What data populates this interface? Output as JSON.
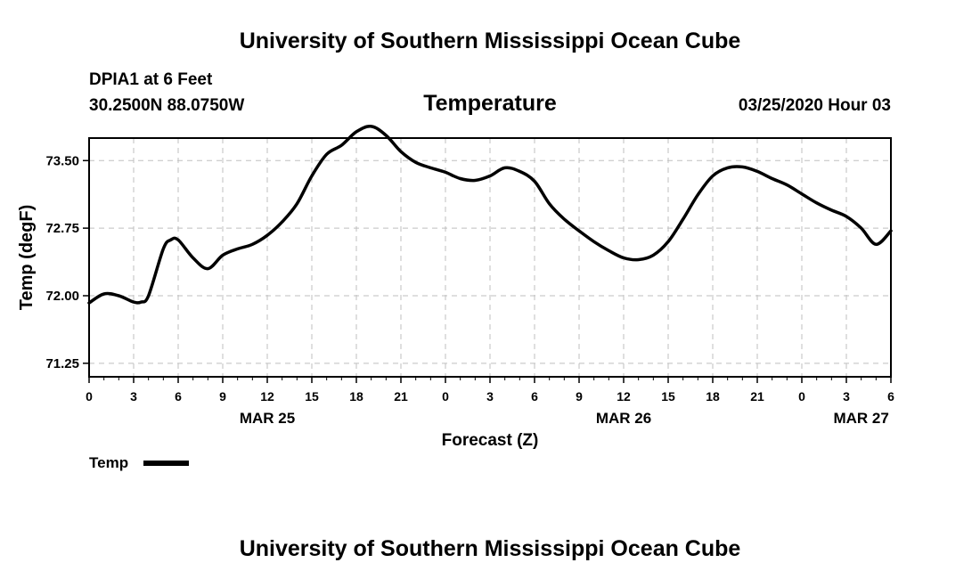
{
  "header": {
    "title": "University of Southern Mississippi Ocean Cube",
    "station": "DPIA1 at 6 Feet",
    "coords": "30.2500N 88.0750W",
    "variable": "Temperature",
    "timestamp": "03/25/2020 Hour 03"
  },
  "footer": {
    "title": "University of Southern Mississippi Ocean Cube"
  },
  "legend": {
    "label": "Temp"
  },
  "colors": {
    "line": "#000000",
    "grid": "#bfbfbf"
  },
  "chart_data": {
    "type": "line",
    "title": "Temperature",
    "xlabel": "Forecast (Z)",
    "ylabel": "Temp (degF)",
    "xlim": [
      0,
      54
    ],
    "ylim": [
      71.1,
      73.75
    ],
    "yticks": [
      "71.25",
      "72.00",
      "72.75",
      "73.50"
    ],
    "ytick_values": [
      71.25,
      72.0,
      72.75,
      73.5
    ],
    "xticks": [
      "0",
      "3",
      "6",
      "9",
      "12",
      "15",
      "18",
      "21",
      "0",
      "3",
      "6",
      "9",
      "12",
      "15",
      "18",
      "21",
      "0",
      "3",
      "6"
    ],
    "xtick_values": [
      0,
      3,
      6,
      9,
      12,
      15,
      18,
      21,
      24,
      27,
      30,
      33,
      36,
      39,
      42,
      45,
      48,
      51,
      54
    ],
    "date_labels": [
      {
        "label": "MAR 25",
        "x": 12
      },
      {
        "label": "MAR 26",
        "x": 36
      },
      {
        "label": "MAR 27",
        "x": 52
      }
    ],
    "grid": true,
    "series": [
      {
        "name": "Temp",
        "x": [
          0,
          1,
          2,
          3,
          3.5,
          4,
          5,
          5.5,
          6,
          7,
          8,
          9,
          10,
          11,
          12,
          13,
          14,
          15,
          16,
          17,
          18,
          19,
          20,
          21,
          22,
          23,
          24,
          25,
          26,
          27,
          28,
          29,
          30,
          31,
          32,
          33,
          34,
          35,
          36,
          37,
          38,
          39,
          40,
          41,
          42,
          43,
          44,
          45,
          46,
          47,
          48,
          49,
          50,
          51,
          52,
          53,
          54
        ],
        "y": [
          71.92,
          72.02,
          72.0,
          71.93,
          71.93,
          72.0,
          72.52,
          72.62,
          72.62,
          72.42,
          72.3,
          72.45,
          72.52,
          72.57,
          72.67,
          72.82,
          73.02,
          73.33,
          73.57,
          73.67,
          73.82,
          73.88,
          73.78,
          73.6,
          73.48,
          73.42,
          73.37,
          73.3,
          73.28,
          73.33,
          73.42,
          73.38,
          73.27,
          73.02,
          72.85,
          72.72,
          72.6,
          72.5,
          72.42,
          72.4,
          72.45,
          72.6,
          72.85,
          73.12,
          73.33,
          73.42,
          73.43,
          73.38,
          73.3,
          73.23,
          73.13,
          73.03,
          72.95,
          72.88,
          72.75,
          72.57,
          72.72
        ]
      }
    ]
  }
}
